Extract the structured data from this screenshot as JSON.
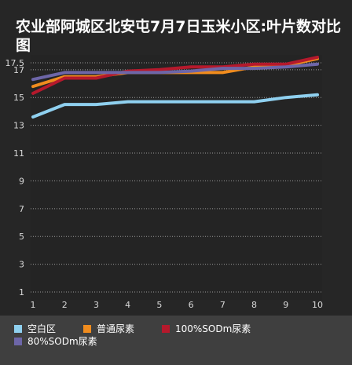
{
  "chart_data": {
    "type": "line",
    "title": "农业部阿城区北安屯7月7日玉米小区:叶片数对比图",
    "x": [
      "1",
      "2",
      "3",
      "4",
      "5",
      "6",
      "7",
      "8",
      "9",
      "10"
    ],
    "y_ticks": [
      "1",
      "3",
      "5",
      "7",
      "9",
      "11",
      "13",
      "15",
      "17",
      "17.5"
    ],
    "ylim": [
      1,
      17.5
    ],
    "grid": "horizontal dotted",
    "legend_position": "bottom",
    "series": [
      {
        "name": "空白区",
        "color": "#8fd0ef",
        "values": [
          13.6,
          14.5,
          14.5,
          14.7,
          14.7,
          14.7,
          14.7,
          14.7,
          15.0,
          15.2
        ]
      },
      {
        "name": "普通尿素",
        "color": "#f08c1e",
        "values": [
          15.8,
          16.5,
          16.5,
          16.8,
          16.8,
          16.8,
          16.8,
          17.2,
          17.3,
          17.8
        ]
      },
      {
        "name": "100%SODm尿素",
        "color": "#b5192c",
        "values": [
          15.3,
          16.4,
          16.4,
          16.9,
          17.0,
          17.2,
          17.2,
          17.4,
          17.4,
          17.9
        ]
      },
      {
        "name": "80%SODm尿素",
        "color": "#6d66a8",
        "values": [
          16.3,
          16.8,
          16.8,
          16.8,
          16.8,
          16.9,
          17.1,
          17.1,
          17.2,
          17.4
        ]
      }
    ]
  }
}
